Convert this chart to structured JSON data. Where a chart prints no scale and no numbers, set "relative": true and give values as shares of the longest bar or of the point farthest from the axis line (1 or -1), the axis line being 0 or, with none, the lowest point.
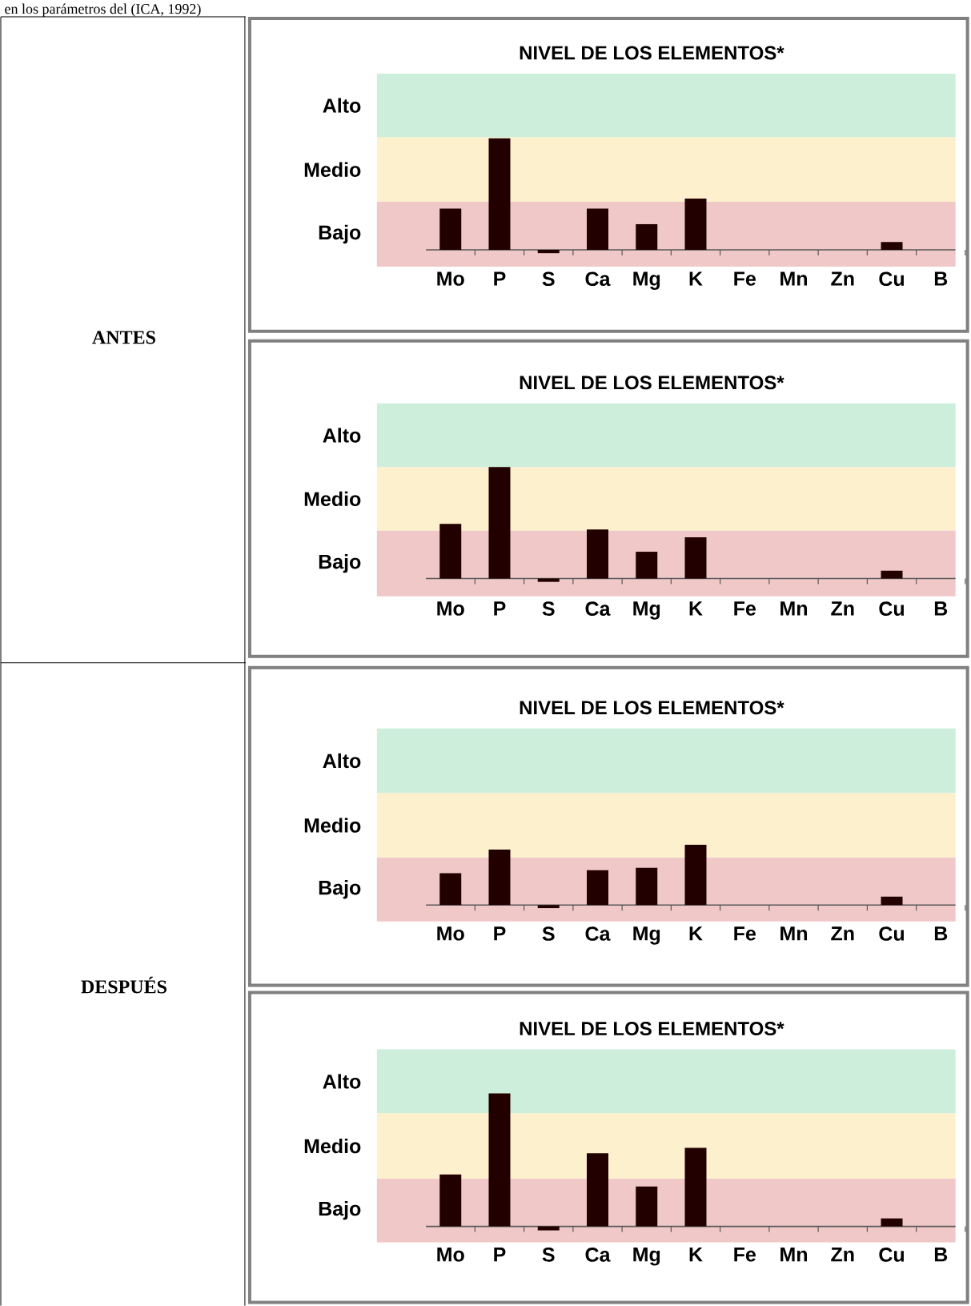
{
  "chart_data": [
    {
      "type": "bar",
      "title": "NIVEL DE LOS ELEMENTOS*",
      "relative": true,
      "annotations": [
        "en los parámetros del (ICA, 1992)",
        "ANTES"
      ],
      "categories": [
        "Mo",
        "P",
        "S",
        "Ca",
        "Mg",
        "K",
        "Fe",
        "Mn",
        "Zn",
        "Cu",
        "B"
      ],
      "values": [
        0.37,
        1,
        -0.03,
        0.37,
        0.23,
        0.46,
        0,
        0,
        0,
        0.07,
        0
      ],
      "color": "#230000",
      "bands": [
        {
          "axis": "y",
          "from": -0.15,
          "to": 0.43,
          "label": "Bajo",
          "color": "#f0c8c8"
        },
        {
          "axis": "y",
          "from": 0.43,
          "to": 1.01,
          "label": "Medio",
          "color": "#fdf0cc"
        },
        {
          "axis": "y",
          "from": 1.01,
          "to": 1.58,
          "label": "Alto",
          "color": "#cdeedb"
        }
      ]
    },
    {
      "type": "bar",
      "title": "NIVEL DE LOS ELEMENTOS*",
      "relative": true,
      "categories": [
        "Mo",
        "P",
        "S",
        "Ca",
        "Mg",
        "K",
        "Fe",
        "Mn",
        "Zn",
        "Cu",
        "B"
      ],
      "values": [
        0.49,
        1,
        -0.03,
        0.44,
        0.24,
        0.37,
        0,
        0,
        0,
        0.07,
        0
      ],
      "color": "#230000",
      "bands": [
        {
          "axis": "y",
          "from": -0.16,
          "to": 0.43,
          "label": "Bajo",
          "color": "#f0c8c8"
        },
        {
          "axis": "y",
          "from": 0.43,
          "to": 1.0,
          "label": "Medio",
          "color": "#fdf0cc"
        },
        {
          "axis": "y",
          "from": 1.0,
          "to": 1.57,
          "label": "Alto",
          "color": "#cdeedb"
        }
      ]
    },
    {
      "type": "bar",
      "title": "NIVEL DE LOS ELEMENTOS*",
      "relative": true,
      "annotations": [
        "DESPUÉS"
      ],
      "categories": [
        "Mo",
        "P",
        "S",
        "Ca",
        "Mg",
        "K",
        "Fe",
        "Mn",
        "Zn",
        "Cu",
        "B"
      ],
      "values": [
        0.53,
        0.92,
        -0.05,
        0.58,
        0.62,
        1,
        0,
        0,
        0,
        0.14,
        0
      ],
      "color": "#230000",
      "bands": [
        {
          "axis": "y",
          "from": -0.27,
          "to": 0.79,
          "label": "Bajo",
          "color": "#f0c8c8"
        },
        {
          "axis": "y",
          "from": 0.79,
          "to": 1.86,
          "label": "Medio",
          "color": "#fdf0cc"
        },
        {
          "axis": "y",
          "from": 1.86,
          "to": 2.93,
          "label": "Alto",
          "color": "#cdeedb"
        }
      ]
    },
    {
      "type": "bar",
      "title": "NIVEL DE LOS ELEMENTOS*",
      "relative": true,
      "categories": [
        "Mo",
        "P",
        "S",
        "Ca",
        "Mg",
        "K",
        "Fe",
        "Mn",
        "Zn",
        "Cu",
        "B"
      ],
      "values": [
        0.39,
        1,
        -0.03,
        0.55,
        0.3,
        0.59,
        0,
        0,
        0,
        0.06,
        0
      ],
      "color": "#230000",
      "bands": [
        {
          "axis": "y",
          "from": -0.12,
          "to": 0.36,
          "label": "Bajo",
          "color": "#f0c8c8"
        },
        {
          "axis": "y",
          "from": 0.36,
          "to": 0.85,
          "label": "Medio",
          "color": "#fdf0cc"
        },
        {
          "axis": "y",
          "from": 0.85,
          "to": 1.33,
          "label": "Alto",
          "color": "#cdeedb"
        }
      ]
    }
  ]
}
